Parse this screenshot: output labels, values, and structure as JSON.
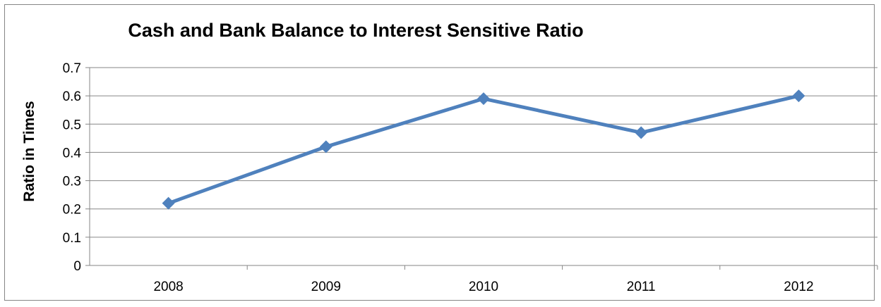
{
  "chart_data": {
    "type": "line",
    "title": "Cash and Bank Balance to Interest Sensitive Ratio",
    "xlabel": "",
    "ylabel": "Ratio in Times",
    "categories": [
      "2008",
      "2009",
      "2010",
      "2011",
      "2012"
    ],
    "series": [
      {
        "values": [
          0.22,
          0.42,
          0.59,
          0.47,
          0.6
        ],
        "color": "#4F81BD",
        "marker": "diamond"
      }
    ],
    "ylim": [
      0,
      0.7
    ],
    "yticks": [
      "0",
      "0.1",
      "0.2",
      "0.3",
      "0.4",
      "0.5",
      "0.6",
      "0.7"
    ],
    "grid": true,
    "legend": "none"
  }
}
